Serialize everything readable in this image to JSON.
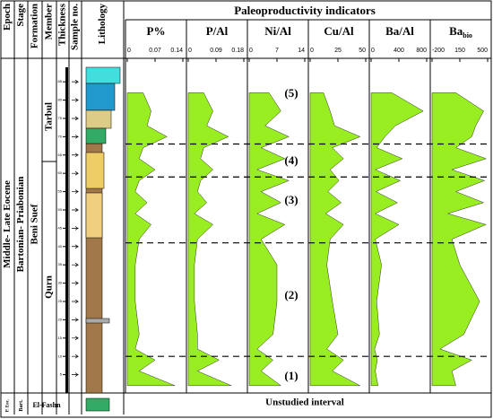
{
  "title": "Paleoproductivity indicators",
  "bottom_note": "Unstudied interval",
  "columns": [
    "Epoch",
    "Stage",
    "Formation",
    "Member",
    "Thickness",
    "Sample no.",
    "Lithology"
  ],
  "units": {
    "epoch": "Middle- Late Eocene",
    "epoch_low": "P. Eoc.",
    "stage": "Bartonian- Priabonian",
    "stage_low": "Bart.",
    "formation": "Beni Suef",
    "formation_low": "El-Fashn",
    "member_top": "Tarbul",
    "member_low": "Qurn"
  },
  "thickness_ticks": [
    5,
    10,
    15,
    20,
    25,
    30,
    35,
    40,
    45,
    50,
    55,
    60,
    65,
    70,
    75,
    80,
    85
  ],
  "depth_lim": [
    0,
    87
  ],
  "boundaries": [
    10,
    41,
    59,
    68
  ],
  "zones": [
    "(5)",
    "(4)",
    "(3)",
    "(2)",
    "(1)"
  ],
  "chart_data": [
    {
      "type": "area",
      "title": "P%",
      "color": "#99ee22",
      "xlim": [
        0,
        0.14
      ],
      "xticks": [
        0,
        0.07,
        0.14
      ],
      "y": [
        2,
        6,
        9,
        12,
        16,
        25,
        35,
        42,
        46,
        49,
        52,
        55,
        58,
        61,
        64,
        67,
        70,
        73,
        77,
        82
      ],
      "values": [
        0.12,
        0.03,
        0.07,
        0.02,
        0.03,
        0.02,
        0.02,
        0.03,
        0.06,
        0.02,
        0.05,
        0.02,
        0.03,
        0.07,
        0.03,
        0.04,
        0.1,
        0.05,
        0.06,
        0.04
      ]
    },
    {
      "type": "area",
      "title": "P/Al",
      "color": "#99ee22",
      "xlim": [
        0,
        0.18
      ],
      "xticks": [
        0,
        0.09,
        0.18
      ],
      "y": [
        2,
        6,
        9,
        12,
        16,
        25,
        35,
        42,
        46,
        49,
        52,
        55,
        58,
        61,
        64,
        67,
        70,
        73,
        77,
        82
      ],
      "values": [
        0.14,
        0.03,
        0.1,
        0.03,
        0.03,
        0.02,
        0.02,
        0.03,
        0.08,
        0.02,
        0.06,
        0.03,
        0.04,
        0.08,
        0.04,
        0.05,
        0.13,
        0.06,
        0.08,
        0.05
      ]
    },
    {
      "type": "area",
      "title": "Ni/Al",
      "color": "#99ee22",
      "xlim": [
        0,
        14
      ],
      "xticks": [
        0,
        7,
        14
      ],
      "y": [
        2,
        6,
        9,
        12,
        16,
        25,
        35,
        42,
        46,
        49,
        52,
        55,
        58,
        61,
        64,
        67,
        70,
        73,
        77,
        82
      ],
      "values": [
        8,
        3,
        6,
        2,
        6,
        7,
        7,
        3,
        9,
        2,
        8,
        3,
        10,
        2,
        9,
        3,
        10,
        4,
        8,
        5
      ]
    },
    {
      "type": "area",
      "title": "Cu/Al",
      "color": "#99ee22",
      "xlim": [
        0,
        50
      ],
      "xticks": [
        0,
        25,
        50
      ],
      "y": [
        2,
        6,
        9,
        12,
        16,
        25,
        35,
        42,
        46,
        49,
        52,
        55,
        58,
        61,
        64,
        67,
        70,
        73,
        77,
        82
      ],
      "values": [
        45,
        20,
        30,
        15,
        25,
        20,
        15,
        18,
        30,
        14,
        28,
        16,
        26,
        18,
        30,
        20,
        45,
        22,
        18,
        12
      ]
    },
    {
      "type": "area",
      "title": "Ba/Al",
      "color": "#99ee22",
      "xlim": [
        0,
        800
      ],
      "xticks": [
        0,
        400,
        800
      ],
      "y": [
        2,
        6,
        9,
        12,
        16,
        25,
        35,
        42,
        46,
        49,
        52,
        55,
        58,
        61,
        64,
        67,
        70,
        73,
        77,
        82
      ],
      "values": [
        100,
        60,
        90,
        50,
        120,
        80,
        150,
        60,
        400,
        60,
        380,
        70,
        420,
        60,
        450,
        80,
        200,
        350,
        750,
        300
      ]
    },
    {
      "type": "area",
      "title": "Ba",
      "title_sub": "bio",
      "color": "#99ee22",
      "xlim": [
        -200,
        500
      ],
      "xticks": [
        -200,
        150,
        500
      ],
      "y": [
        2,
        6,
        9,
        12,
        16,
        25,
        35,
        42,
        46,
        49,
        52,
        55,
        58,
        61,
        64,
        67,
        70,
        73,
        77,
        82
      ],
      "values": [
        100,
        50,
        300,
        -100,
        200,
        400,
        150,
        50,
        480,
        0,
        450,
        100,
        460,
        50,
        480,
        100,
        300,
        350,
        450,
        100
      ]
    }
  ]
}
